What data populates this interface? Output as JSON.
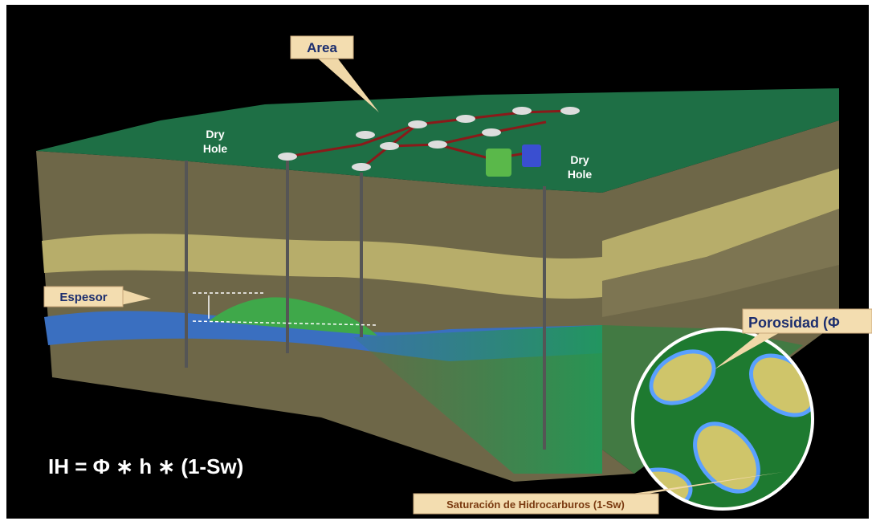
{
  "labels": {
    "area": "Area",
    "dry_hole_left": [
      "Dry",
      "Hole"
    ],
    "dry_hole_right": [
      "Dry",
      "Hole"
    ],
    "espesor": "Espesor",
    "porosidad": "Porosidad (Φ",
    "formula": "IH = Φ ∗ h ∗ (1-Sw)",
    "saturacion": "Saturación de Hidrocarburos (1-Sw)"
  }
}
